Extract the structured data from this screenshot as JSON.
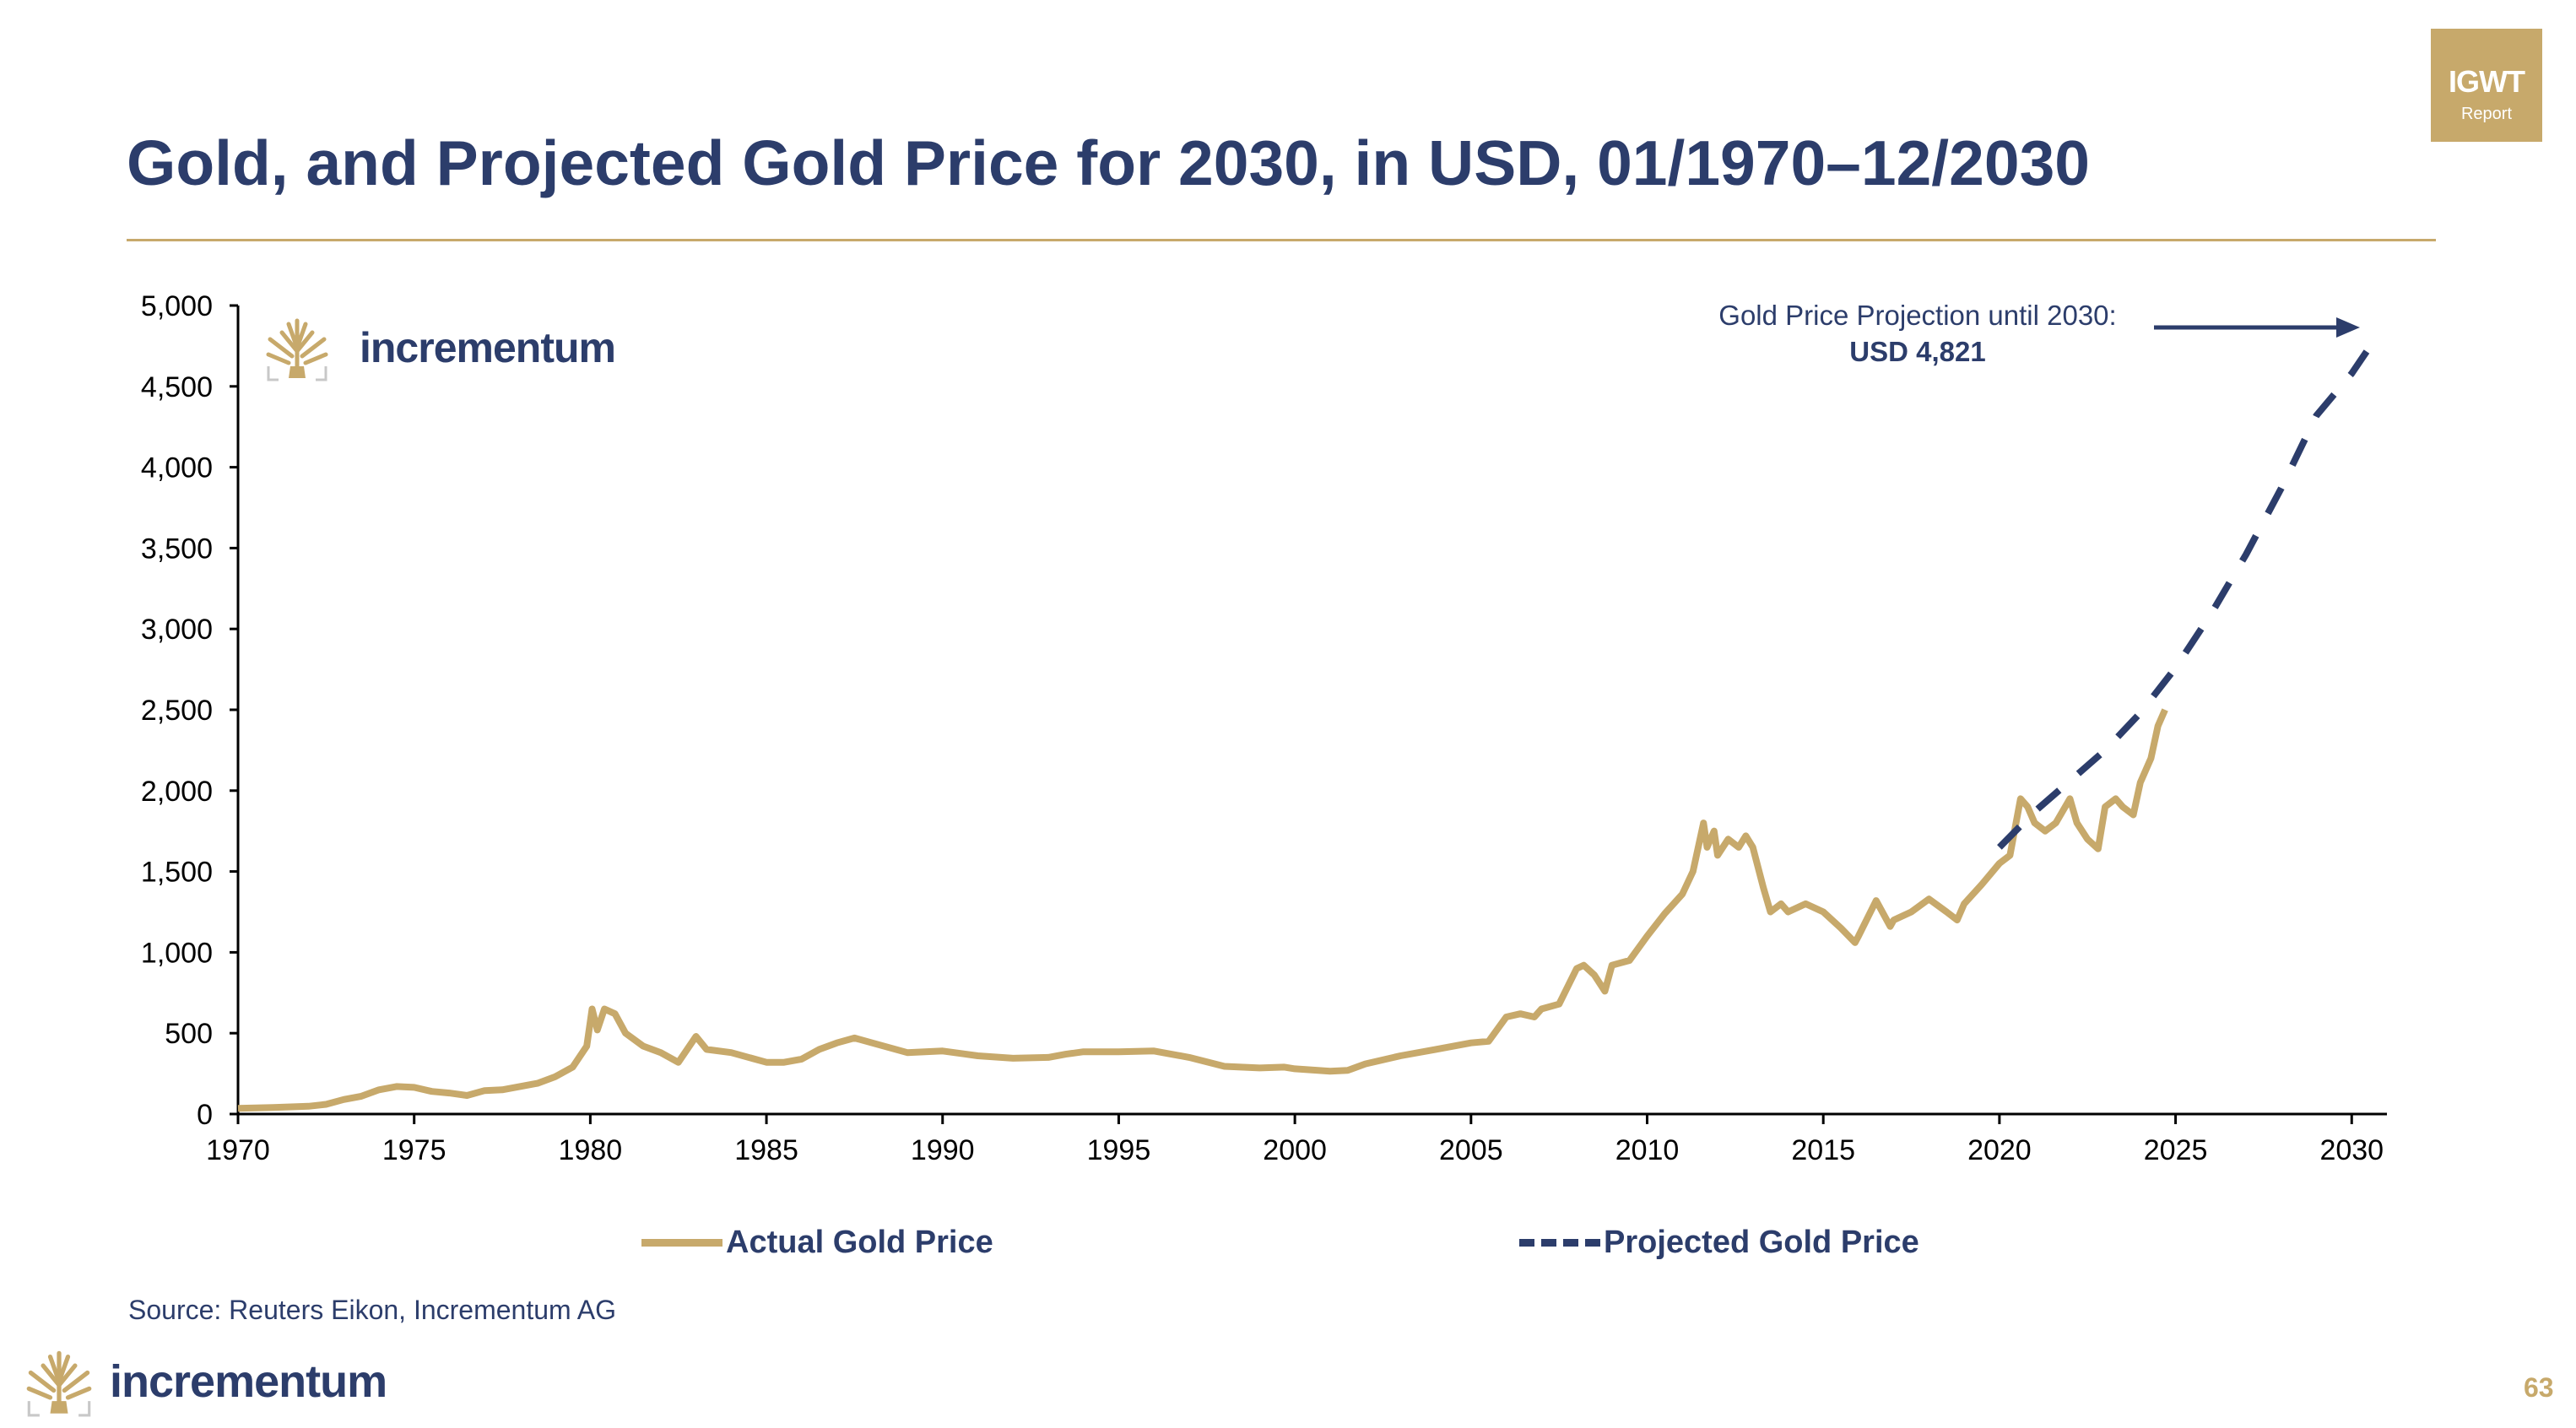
{
  "badge": {
    "line1": "IGWT",
    "line2": "Report"
  },
  "title": "Gold, and Projected Gold Price for 2030, in USD, 01/1970–12/2030",
  "logo": {
    "word": "incrementum"
  },
  "source": "Source: Reuters Eikon, Incrementum AG",
  "page_number": "63",
  "colors": {
    "gold": "#c7a96b",
    "navy": "#2c3d6b",
    "axis": "#000000"
  },
  "icons": {
    "brand": "tree-logo-icon",
    "annotation": "arrow-right-icon"
  },
  "chart_data": {
    "type": "line",
    "xlim": [
      1970,
      2031
    ],
    "ylim": [
      0,
      5000
    ],
    "x_ticks": [
      1970,
      1975,
      1980,
      1985,
      1990,
      1995,
      2000,
      2005,
      2010,
      2015,
      2020,
      2025,
      2030
    ],
    "x_tick_labels": [
      "1970",
      "1975",
      "1980",
      "1985",
      "1990",
      "1995",
      "2000",
      "2005",
      "2010",
      "2015",
      "2020",
      "2025",
      "2030"
    ],
    "y_ticks": [
      0,
      500,
      1000,
      1500,
      2000,
      2500,
      3000,
      3500,
      4000,
      4500,
      5000
    ],
    "y_tick_labels": [
      "0",
      "500",
      "1,000",
      "1,500",
      "2,000",
      "2,500",
      "3,000",
      "3,500",
      "4,000",
      "4,500",
      "5,000"
    ],
    "grid": false,
    "legend_position": "bottom",
    "annotation": {
      "line1": "Gold Price Projection until 2030:",
      "line2": "USD 4,821"
    },
    "series": [
      {
        "name": "Actual Gold Price",
        "style": "solid",
        "x": [
          1970.0,
          1971.0,
          1972.0,
          1972.5,
          1973.0,
          1973.5,
          1974.0,
          1974.5,
          1975.0,
          1975.5,
          1976.0,
          1976.5,
          1977.0,
          1977.5,
          1978.0,
          1978.5,
          1979.0,
          1979.5,
          1979.9,
          1980.05,
          1980.2,
          1980.4,
          1980.7,
          1981.0,
          1981.5,
          1982.0,
          1982.5,
          1983.0,
          1983.3,
          1984.0,
          1985.0,
          1985.5,
          1986.0,
          1986.5,
          1987.0,
          1987.5,
          1988.0,
          1989.0,
          1990.0,
          1991.0,
          1992.0,
          1993.0,
          1993.5,
          1994.0,
          1995.0,
          1996.0,
          1997.0,
          1998.0,
          1999.0,
          1999.7,
          2000.0,
          2001.0,
          2001.5,
          2002.0,
          2003.0,
          2004.0,
          2005.0,
          2005.5,
          2006.0,
          2006.4,
          2006.8,
          2007.0,
          2007.5,
          2008.0,
          2008.2,
          2008.5,
          2008.8,
          2009.0,
          2009.5,
          2010.0,
          2010.5,
          2011.0,
          2011.3,
          2011.6,
          2011.7,
          2011.9,
          2012.0,
          2012.3,
          2012.6,
          2012.8,
          2013.0,
          2013.3,
          2013.5,
          2013.8,
          2014.0,
          2014.5,
          2015.0,
          2015.5,
          2015.9,
          2016.0,
          2016.5,
          2016.9,
          2017.0,
          2017.5,
          2018.0,
          2018.5,
          2018.8,
          2019.0,
          2019.5,
          2020.0,
          2020.3,
          2020.6,
          2020.8,
          2021.0,
          2021.3,
          2021.6,
          2022.0,
          2022.2,
          2022.5,
          2022.8,
          2023.0,
          2023.3,
          2023.5,
          2023.8,
          2024.0,
          2024.3,
          2024.5,
          2024.7
        ],
        "y": [
          35,
          40,
          48,
          60,
          90,
          110,
          150,
          170,
          165,
          140,
          130,
          115,
          145,
          150,
          170,
          190,
          230,
          290,
          420,
          650,
          520,
          650,
          620,
          500,
          420,
          380,
          320,
          480,
          400,
          380,
          320,
          320,
          340,
          400,
          440,
          470,
          440,
          380,
          390,
          360,
          345,
          350,
          370,
          385,
          385,
          390,
          350,
          295,
          285,
          290,
          280,
          265,
          270,
          310,
          360,
          400,
          440,
          450,
          600,
          620,
          600,
          650,
          680,
          900,
          920,
          860,
          760,
          920,
          950,
          1100,
          1240,
          1360,
          1500,
          1800,
          1650,
          1750,
          1600,
          1700,
          1650,
          1720,
          1650,
          1400,
          1250,
          1300,
          1250,
          1300,
          1250,
          1150,
          1060,
          1100,
          1320,
          1160,
          1200,
          1250,
          1330,
          1250,
          1200,
          1300,
          1420,
          1550,
          1600,
          1950,
          1900,
          1800,
          1750,
          1800,
          1950,
          1800,
          1700,
          1640,
          1900,
          1950,
          1900,
          1850,
          2050,
          2200,
          2400,
          2500
        ]
      },
      {
        "name": "Projected Gold Price",
        "style": "dashed",
        "x": [
          2020.0,
          2021.0,
          2022.0,
          2023.0,
          2024.0,
          2025.0,
          2026.0,
          2027.0,
          2028.0,
          2029.0,
          2030.0,
          2030.75
        ],
        "y": [
          1650,
          1870,
          2060,
          2250,
          2480,
          2760,
          3090,
          3460,
          3870,
          4320,
          4580,
          4821
        ]
      }
    ]
  }
}
